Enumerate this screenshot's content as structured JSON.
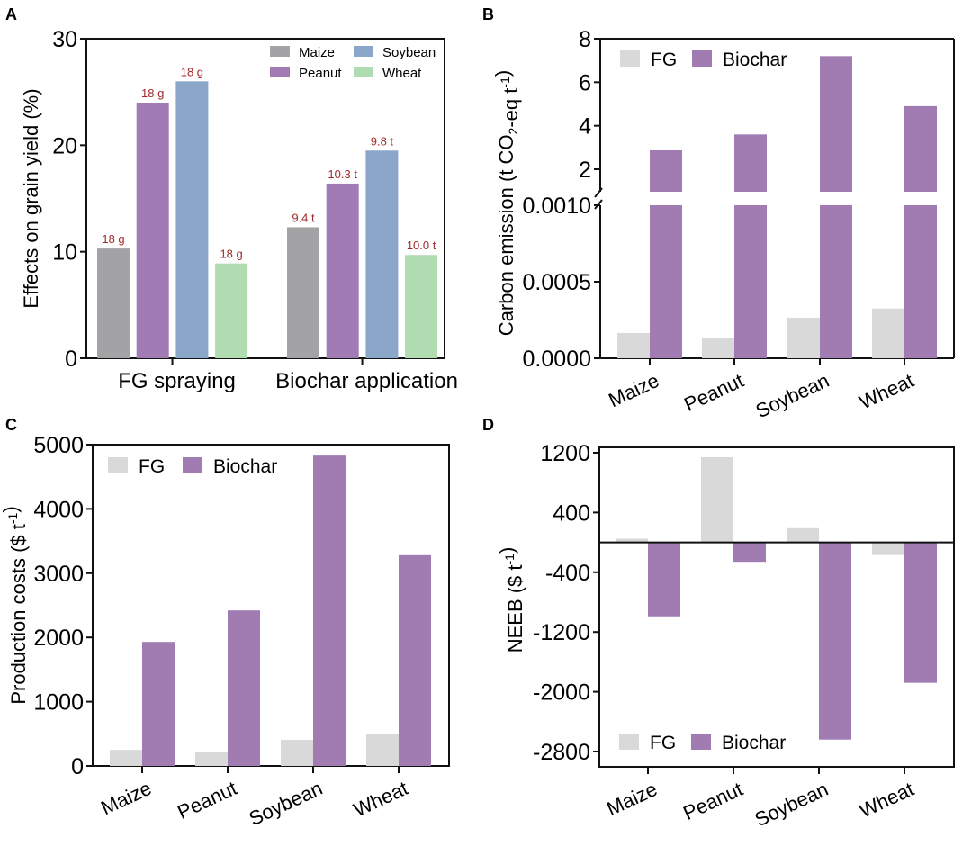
{
  "colors": {
    "maize": "#a3a2a4",
    "peanut": "#a17bb4",
    "soybean": "#8aa6c9",
    "wheat": "#b1dbb0",
    "fg": "#d9d9d9",
    "biochar": "#a07cb2",
    "label_red": "#a0282a"
  },
  "chart_data": [
    {
      "panel": "A",
      "type": "bar",
      "title": "",
      "xlabel": "",
      "ylabel": "Effects on grain yield (%)",
      "categories": [
        "FG spraying",
        "Biochar application"
      ],
      "ylim": [
        0,
        30
      ],
      "yticks": [
        "0",
        "10",
        "20",
        "30"
      ],
      "yticks_values": [
        0,
        10,
        20,
        30
      ],
      "legend": {
        "position": "top-right",
        "entries": [
          "Maize",
          "Peanut",
          "Soybean",
          "Wheat"
        ]
      },
      "series": [
        {
          "name": "Maize",
          "values": [
            10.3,
            12.3
          ],
          "labels": [
            "18 g",
            "9.4 t"
          ]
        },
        {
          "name": "Peanut",
          "values": [
            24.0,
            16.4
          ],
          "labels": [
            "18 g",
            "10.3 t"
          ]
        },
        {
          "name": "Soybean",
          "values": [
            26.0,
            19.5
          ],
          "labels": [
            "18 g",
            "9.8 t"
          ]
        },
        {
          "name": "Wheat",
          "values": [
            8.9,
            9.7
          ],
          "labels": [
            "18 g",
            "10.0 t"
          ]
        }
      ]
    },
    {
      "panel": "B",
      "type": "bar",
      "title": "",
      "xlabel": "",
      "ylabel": "Carbon emission (t CO2-eq t-1)",
      "categories": [
        "Maize",
        "Peanut",
        "Soybean",
        "Wheat"
      ],
      "axis_break": true,
      "lower_ylim": [
        0,
        0.001
      ],
      "lower_yticks": [
        "0.0000",
        "0.0005",
        "0.0010"
      ],
      "lower_yticks_values": [
        0,
        0.0005,
        0.001
      ],
      "upper_ylim": [
        1.1,
        8
      ],
      "upper_yticks": [
        "2",
        "4",
        "6",
        "8"
      ],
      "upper_yticks_values": [
        2,
        4,
        6,
        8
      ],
      "legend": {
        "position": "top-left",
        "entries": [
          "FG",
          "Biochar"
        ]
      },
      "series": [
        {
          "name": "FG",
          "values": [
            0.000165,
            0.000135,
            0.000265,
            0.000325
          ]
        },
        {
          "name": "Biochar",
          "values": [
            2.87,
            3.6,
            7.2,
            4.9
          ]
        }
      ]
    },
    {
      "panel": "C",
      "type": "bar",
      "title": "",
      "xlabel": "",
      "ylabel": "Production costs ($ t-1)",
      "categories": [
        "Maize",
        "Peanut",
        "Soybean",
        "Wheat"
      ],
      "ylim": [
        0,
        5000
      ],
      "yticks": [
        "0",
        "1000",
        "2000",
        "3000",
        "4000",
        "5000"
      ],
      "yticks_values": [
        0,
        1000,
        2000,
        3000,
        4000,
        5000
      ],
      "legend": {
        "position": "top-left",
        "entries": [
          "FG",
          "Biochar"
        ]
      },
      "series": [
        {
          "name": "FG",
          "values": [
            250,
            210,
            405,
            500
          ]
        },
        {
          "name": "Biochar",
          "values": [
            1930,
            2420,
            4830,
            3280
          ]
        }
      ]
    },
    {
      "panel": "D",
      "type": "bar",
      "title": "",
      "xlabel": "",
      "ylabel": "NEEB ($ t-1)",
      "categories": [
        "Maize",
        "Peanut",
        "Soybean",
        "Wheat"
      ],
      "ylim": [
        -3000,
        1300
      ],
      "yticks": [
        "-2800",
        "-2000",
        "-1200",
        "-400",
        "400",
        "1200"
      ],
      "yticks_values": [
        -2800,
        -2000,
        -1200,
        -400,
        400,
        1200
      ],
      "legend": {
        "position": "bottom-left",
        "entries": [
          "FG",
          "Biochar"
        ]
      },
      "series": [
        {
          "name": "FG",
          "values": [
            50,
            1140,
            190,
            -170
          ]
        },
        {
          "name": "Biochar",
          "values": [
            -990,
            -260,
            -2640,
            -1880
          ]
        }
      ]
    }
  ],
  "panel_labels": [
    "A",
    "B",
    "C",
    "D"
  ]
}
